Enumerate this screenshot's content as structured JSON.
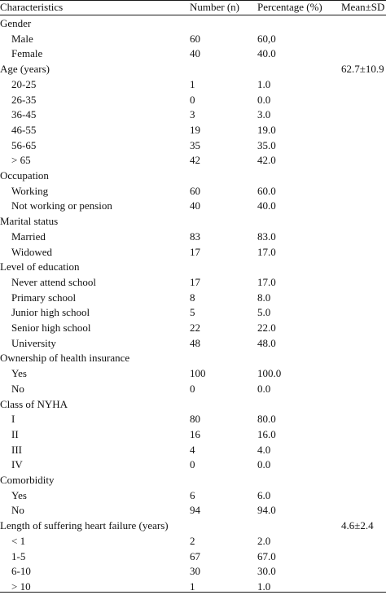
{
  "header": {
    "characteristics": "Characteristics",
    "number": "Number (n)",
    "percentage": "Percentage (%)",
    "mean_sd": "Mean±SD"
  },
  "rows": [
    {
      "label": "Gender",
      "n": "",
      "pct": "",
      "msd": "",
      "indent": false
    },
    {
      "label": "Male",
      "n": "60",
      "pct": "60,0",
      "msd": "",
      "indent": true
    },
    {
      "label": "Female",
      "n": "40",
      "pct": "40.0",
      "msd": "",
      "indent": true
    },
    {
      "label": "Age (years)",
      "n": "",
      "pct": "",
      "msd": "62.7±10.9",
      "indent": false
    },
    {
      "label": "20-25",
      "n": "1",
      "pct": "1.0",
      "msd": "",
      "indent": true
    },
    {
      "label": "26-35",
      "n": "0",
      "pct": "0.0",
      "msd": "",
      "indent": true
    },
    {
      "label": "36-45",
      "n": "3",
      "pct": "3.0",
      "msd": "",
      "indent": true
    },
    {
      "label": "46-55",
      "n": "19",
      "pct": "19.0",
      "msd": "",
      "indent": true
    },
    {
      "label": "56-65",
      "n": "35",
      "pct": "35.0",
      "msd": "",
      "indent": true
    },
    {
      "label": "> 65",
      "n": "42",
      "pct": "42.0",
      "msd": "",
      "indent": true
    },
    {
      "label": "Occupation",
      "n": "",
      "pct": "",
      "msd": "",
      "indent": false
    },
    {
      "label": "Working",
      "n": "60",
      "pct": "60.0",
      "msd": "",
      "indent": true
    },
    {
      "label": "Not working or pension",
      "n": "40",
      "pct": "40.0",
      "msd": "",
      "indent": true
    },
    {
      "label": "Marital status",
      "n": "",
      "pct": "",
      "msd": "",
      "indent": false
    },
    {
      "label": "Married",
      "n": "83",
      "pct": "83.0",
      "msd": "",
      "indent": true
    },
    {
      "label": "Widowed",
      "n": "17",
      "pct": "17.0",
      "msd": "",
      "indent": true
    },
    {
      "label": "Level of education",
      "n": "",
      "pct": "",
      "msd": "",
      "indent": false
    },
    {
      "label": "Never attend school",
      "n": "17",
      "pct": "17.0",
      "msd": "",
      "indent": true
    },
    {
      "label": "Primary school",
      "n": "8",
      "pct": "8.0",
      "msd": "",
      "indent": true
    },
    {
      "label": "Junior high school",
      "n": "5",
      "pct": "5.0",
      "msd": "",
      "indent": true
    },
    {
      "label": "Senior high school",
      "n": "22",
      "pct": "22.0",
      "msd": "",
      "indent": true
    },
    {
      "label": "University",
      "n": "48",
      "pct": "48.0",
      "msd": "",
      "indent": true
    },
    {
      "label": "Ownership of health insurance",
      "n": "",
      "pct": "",
      "msd": "",
      "indent": false
    },
    {
      "label": "Yes",
      "n": "100",
      "pct": "100.0",
      "msd": "",
      "indent": true
    },
    {
      "label": "No",
      "n": "0",
      "pct": "0.0",
      "msd": "",
      "indent": true
    },
    {
      "label": "Class of NYHA",
      "n": "",
      "pct": "",
      "msd": "",
      "indent": false
    },
    {
      "label": "I",
      "n": "80",
      "pct": "80.0",
      "msd": "",
      "indent": true
    },
    {
      "label": "II",
      "n": "16",
      "pct": "16.0",
      "msd": "",
      "indent": true
    },
    {
      "label": "III",
      "n": "4",
      "pct": "4.0",
      "msd": "",
      "indent": true
    },
    {
      "label": "IV",
      "n": "0",
      "pct": "0.0",
      "msd": "",
      "indent": true
    },
    {
      "label": "Comorbidity",
      "n": "",
      "pct": "",
      "msd": "",
      "indent": false
    },
    {
      "label": "Yes",
      "n": "6",
      "pct": "6.0",
      "msd": "",
      "indent": true
    },
    {
      "label": "No",
      "n": "94",
      "pct": "94.0",
      "msd": "",
      "indent": true
    },
    {
      "label": "Length of suffering heart failure (years)",
      "n": "",
      "pct": "",
      "msd": "4.6±2.4",
      "indent": false
    },
    {
      "label": "< 1",
      "n": "2",
      "pct": "2.0",
      "msd": "",
      "indent": true
    },
    {
      "label": "1-5",
      "n": "67",
      "pct": "67.0",
      "msd": "",
      "indent": true
    },
    {
      "label": "6-10",
      "n": "30",
      "pct": "30.0",
      "msd": "",
      "indent": true
    },
    {
      "label": "> 10",
      "n": "1",
      "pct": "1.0",
      "msd": "",
      "indent": true
    }
  ]
}
